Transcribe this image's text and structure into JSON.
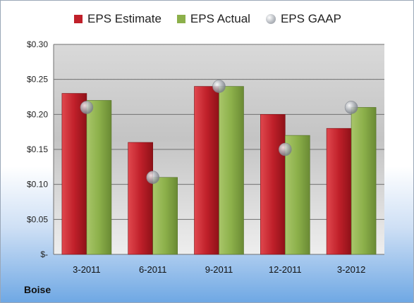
{
  "chart_data": {
    "type": "bar",
    "categories": [
      "3-2011",
      "6-2011",
      "9-2011",
      "12-2011",
      "3-2012"
    ],
    "series": [
      {
        "name": "EPS Estimate",
        "values": [
          0.23,
          0.16,
          0.24,
          0.2,
          0.18
        ],
        "color": "#c0202a",
        "kind": "bar"
      },
      {
        "name": "EPS Actual",
        "values": [
          0.22,
          0.11,
          0.24,
          0.17,
          0.21
        ],
        "color": "#8cb04a",
        "kind": "bar"
      },
      {
        "name": "EPS GAAP",
        "values": [
          0.21,
          0.11,
          0.24,
          0.15,
          0.21
        ],
        "color": "#b8bcc2",
        "kind": "marker"
      }
    ],
    "ylim": [
      0,
      0.3
    ],
    "yticks": [
      0,
      0.05,
      0.1,
      0.15,
      0.2,
      0.25,
      0.3
    ],
    "ytick_labels": [
      "$-",
      "$0.05",
      "$0.10",
      "$0.15",
      "$0.20",
      "$0.25",
      "$0.30"
    ],
    "grid": true,
    "legend_position": "top"
  },
  "legend": {
    "estimate": "EPS Estimate",
    "actual": "EPS Actual",
    "gaap": "EPS GAAP"
  },
  "company": "Boise"
}
